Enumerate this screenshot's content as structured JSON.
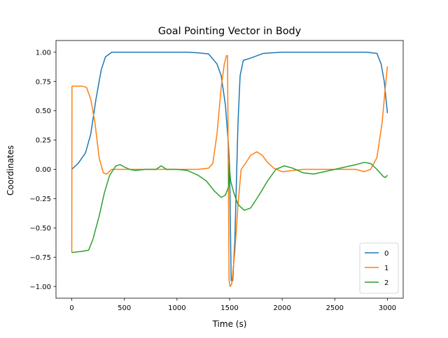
{
  "chart_data": {
    "type": "line",
    "title": "Goal Pointing Vector in Body",
    "xlabel": "Time (s)",
    "ylabel": "Coordinates",
    "xlim": [
      -150,
      3150
    ],
    "ylim": [
      -1.1,
      1.1
    ],
    "xticks": [
      0,
      500,
      1000,
      1500,
      2000,
      2500,
      3000
    ],
    "yticks": [
      -1.0,
      -0.75,
      -0.5,
      -0.25,
      0.0,
      0.25,
      0.5,
      0.75,
      1.0
    ],
    "xtick_labels": [
      "0",
      "500",
      "1000",
      "1500",
      "2000",
      "2500",
      "3000"
    ],
    "ytick_labels": [
      "−1.00",
      "−0.75",
      "−0.50",
      "−0.25",
      "0.00",
      "0.25",
      "0.50",
      "0.75",
      "1.00"
    ],
    "grid": false,
    "legend_position": "lower right",
    "series": [
      {
        "name": "0",
        "color": "#1f77b4",
        "points": [
          [
            0,
            0.0
          ],
          [
            60,
            0.05
          ],
          [
            130,
            0.14
          ],
          [
            180,
            0.3
          ],
          [
            230,
            0.6
          ],
          [
            280,
            0.85
          ],
          [
            320,
            0.96
          ],
          [
            380,
            1.0
          ],
          [
            500,
            1.0
          ],
          [
            700,
            1.0
          ],
          [
            900,
            1.0
          ],
          [
            1100,
            1.0
          ],
          [
            1200,
            0.995
          ],
          [
            1300,
            0.985
          ],
          [
            1380,
            0.9
          ],
          [
            1420,
            0.8
          ],
          [
            1460,
            0.55
          ],
          [
            1490,
            0.2
          ],
          [
            1500,
            0.02
          ],
          [
            1515,
            -0.95
          ],
          [
            1530,
            -0.95
          ],
          [
            1550,
            -0.6
          ],
          [
            1580,
            0.4
          ],
          [
            1600,
            0.8
          ],
          [
            1630,
            0.93
          ],
          [
            1700,
            0.95
          ],
          [
            1760,
            0.97
          ],
          [
            1820,
            0.99
          ],
          [
            2000,
            1.0
          ],
          [
            2500,
            1.0
          ],
          [
            2800,
            1.0
          ],
          [
            2900,
            0.99
          ],
          [
            2940,
            0.9
          ],
          [
            2970,
            0.75
          ],
          [
            3000,
            0.48
          ]
        ]
      },
      {
        "name": "1",
        "color": "#ff7f0e",
        "points": [
          [
            0,
            -0.71
          ],
          [
            2,
            0.71
          ],
          [
            100,
            0.71
          ],
          [
            140,
            0.7
          ],
          [
            180,
            0.6
          ],
          [
            220,
            0.4
          ],
          [
            260,
            0.1
          ],
          [
            300,
            -0.03
          ],
          [
            330,
            -0.04
          ],
          [
            380,
            0.0
          ],
          [
            450,
            0.0
          ],
          [
            700,
            0.0
          ],
          [
            1000,
            0.0
          ],
          [
            1200,
            0.0
          ],
          [
            1300,
            0.01
          ],
          [
            1340,
            0.05
          ],
          [
            1380,
            0.3
          ],
          [
            1420,
            0.7
          ],
          [
            1450,
            0.9
          ],
          [
            1470,
            0.97
          ],
          [
            1480,
            0.97
          ],
          [
            1495,
            -0.95
          ],
          [
            1505,
            -1.0
          ],
          [
            1520,
            -0.98
          ],
          [
            1550,
            -0.7
          ],
          [
            1580,
            -0.3
          ],
          [
            1610,
            0.0
          ],
          [
            1650,
            0.05
          ],
          [
            1700,
            0.12
          ],
          [
            1760,
            0.15
          ],
          [
            1810,
            0.12
          ],
          [
            1860,
            0.06
          ],
          [
            1920,
            0.01
          ],
          [
            2000,
            -0.02
          ],
          [
            2200,
            0.0
          ],
          [
            2500,
            0.0
          ],
          [
            2700,
            0.0
          ],
          [
            2780,
            -0.02
          ],
          [
            2840,
            0.0
          ],
          [
            2900,
            0.1
          ],
          [
            2950,
            0.4
          ],
          [
            2980,
            0.7
          ],
          [
            3000,
            0.88
          ]
        ]
      },
      {
        "name": "2",
        "color": "#2ca02c",
        "points": [
          [
            0,
            -0.71
          ],
          [
            100,
            -0.7
          ],
          [
            160,
            -0.69
          ],
          [
            200,
            -0.6
          ],
          [
            260,
            -0.4
          ],
          [
            310,
            -0.2
          ],
          [
            360,
            -0.05
          ],
          [
            420,
            0.03
          ],
          [
            460,
            0.04
          ],
          [
            500,
            0.02
          ],
          [
            550,
            0.0
          ],
          [
            600,
            -0.01
          ],
          [
            700,
            0.0
          ],
          [
            800,
            0.0
          ],
          [
            850,
            0.03
          ],
          [
            900,
            0.0
          ],
          [
            1000,
            0.0
          ],
          [
            1100,
            -0.01
          ],
          [
            1200,
            -0.05
          ],
          [
            1280,
            -0.1
          ],
          [
            1350,
            -0.18
          ],
          [
            1420,
            -0.24
          ],
          [
            1460,
            -0.22
          ],
          [
            1490,
            -0.15
          ],
          [
            1495,
            0.05
          ],
          [
            1500,
            0.0
          ],
          [
            1510,
            -0.1
          ],
          [
            1540,
            -0.2
          ],
          [
            1580,
            -0.3
          ],
          [
            1640,
            -0.35
          ],
          [
            1700,
            -0.33
          ],
          [
            1780,
            -0.22
          ],
          [
            1860,
            -0.1
          ],
          [
            1940,
            0.0
          ],
          [
            2020,
            0.03
          ],
          [
            2100,
            0.01
          ],
          [
            2200,
            -0.03
          ],
          [
            2300,
            -0.04
          ],
          [
            2400,
            -0.02
          ],
          [
            2500,
            0.0
          ],
          [
            2600,
            0.02
          ],
          [
            2700,
            0.04
          ],
          [
            2780,
            0.06
          ],
          [
            2840,
            0.05
          ],
          [
            2900,
            0.0
          ],
          [
            2960,
            -0.06
          ],
          [
            2980,
            -0.07
          ],
          [
            3000,
            -0.05
          ]
        ]
      }
    ]
  }
}
